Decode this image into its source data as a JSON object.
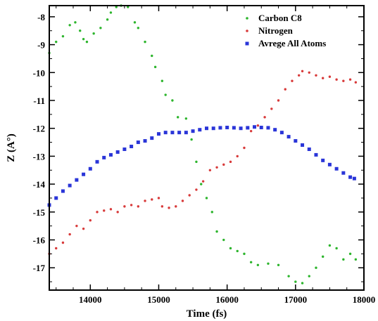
{
  "chart_data": {
    "type": "scatter",
    "title": "",
    "xlabel": "Time (fs)",
    "ylabel": "Z (A°)",
    "xlim": [
      13400,
      18000
    ],
    "ylim": [
      -17.8,
      -7.6
    ],
    "xticks": [
      14000,
      15000,
      16000,
      17000,
      18000
    ],
    "yticks": [
      -8,
      -9,
      -10,
      -11,
      -12,
      -13,
      -14,
      -15,
      -16,
      -17
    ],
    "legend_position": "top-right",
    "series": [
      {
        "name": "Carbon C8",
        "color": "#2db52d",
        "marker": "dot",
        "points": [
          [
            13400,
            -9.3
          ],
          [
            13500,
            -8.9
          ],
          [
            13600,
            -8.7
          ],
          [
            13700,
            -8.3
          ],
          [
            13780,
            -8.2
          ],
          [
            13850,
            -8.5
          ],
          [
            13900,
            -8.8
          ],
          [
            13950,
            -8.9
          ],
          [
            14050,
            -8.6
          ],
          [
            14150,
            -8.4
          ],
          [
            14250,
            -8.1
          ],
          [
            14300,
            -7.85
          ],
          [
            14380,
            -7.65
          ],
          [
            14450,
            -7.6
          ],
          [
            14550,
            -7.65
          ],
          [
            14650,
            -8.2
          ],
          [
            14700,
            -8.4
          ],
          [
            14800,
            -8.9
          ],
          [
            14900,
            -9.4
          ],
          [
            14950,
            -9.8
          ],
          [
            15050,
            -10.3
          ],
          [
            15100,
            -10.8
          ],
          [
            15200,
            -11.0
          ],
          [
            15280,
            -11.6
          ],
          [
            15400,
            -11.65
          ],
          [
            15480,
            -12.4
          ],
          [
            15550,
            -13.2
          ],
          [
            15620,
            -14.0
          ],
          [
            15700,
            -14.5
          ],
          [
            15780,
            -15.0
          ],
          [
            15850,
            -15.7
          ],
          [
            15950,
            -16.0
          ],
          [
            16050,
            -16.3
          ],
          [
            16150,
            -16.4
          ],
          [
            16250,
            -16.5
          ],
          [
            16350,
            -16.8
          ],
          [
            16450,
            -16.9
          ],
          [
            16600,
            -16.85
          ],
          [
            16750,
            -16.9
          ],
          [
            16900,
            -17.3
          ],
          [
            17000,
            -17.5
          ],
          [
            17100,
            -17.55
          ],
          [
            17200,
            -17.3
          ],
          [
            17300,
            -17.0
          ],
          [
            17400,
            -16.6
          ],
          [
            17500,
            -16.2
          ],
          [
            17600,
            -16.3
          ],
          [
            17700,
            -16.7
          ],
          [
            17800,
            -16.5
          ],
          [
            17880,
            -16.7
          ]
        ]
      },
      {
        "name": "Nitrogen",
        "color": "#d83a3a",
        "marker": "dot",
        "points": [
          [
            13400,
            -16.5
          ],
          [
            13500,
            -16.3
          ],
          [
            13600,
            -16.1
          ],
          [
            13700,
            -15.8
          ],
          [
            13800,
            -15.5
          ],
          [
            13900,
            -15.6
          ],
          [
            14000,
            -15.3
          ],
          [
            14100,
            -15.0
          ],
          [
            14200,
            -14.95
          ],
          [
            14300,
            -14.9
          ],
          [
            14400,
            -15.0
          ],
          [
            14500,
            -14.8
          ],
          [
            14600,
            -14.75
          ],
          [
            14700,
            -14.8
          ],
          [
            14800,
            -14.6
          ],
          [
            14900,
            -14.55
          ],
          [
            15000,
            -14.5
          ],
          [
            15050,
            -14.8
          ],
          [
            15150,
            -14.85
          ],
          [
            15250,
            -14.8
          ],
          [
            15350,
            -14.6
          ],
          [
            15450,
            -14.4
          ],
          [
            15550,
            -14.2
          ],
          [
            15650,
            -13.9
          ],
          [
            15750,
            -13.5
          ],
          [
            15850,
            -13.4
          ],
          [
            15950,
            -13.3
          ],
          [
            16050,
            -13.2
          ],
          [
            16150,
            -13.0
          ],
          [
            16250,
            -12.7
          ],
          [
            16350,
            -12.1
          ],
          [
            16450,
            -11.9
          ],
          [
            16550,
            -11.6
          ],
          [
            16650,
            -11.3
          ],
          [
            16750,
            -11.0
          ],
          [
            16850,
            -10.6
          ],
          [
            16950,
            -10.3
          ],
          [
            17050,
            -10.1
          ],
          [
            17100,
            -9.95
          ],
          [
            17200,
            -10.0
          ],
          [
            17300,
            -10.1
          ],
          [
            17400,
            -10.2
          ],
          [
            17500,
            -10.15
          ],
          [
            17600,
            -10.25
          ],
          [
            17700,
            -10.3
          ],
          [
            17800,
            -10.25
          ],
          [
            17880,
            -10.35
          ]
        ]
      },
      {
        "name": "Avrege All Atoms",
        "color": "#2a35d8",
        "marker": "square",
        "points": [
          [
            13400,
            -14.75
          ],
          [
            13500,
            -14.5
          ],
          [
            13600,
            -14.25
          ],
          [
            13700,
            -14.05
          ],
          [
            13800,
            -13.85
          ],
          [
            13900,
            -13.65
          ],
          [
            14000,
            -13.45
          ],
          [
            14100,
            -13.2
          ],
          [
            14200,
            -13.05
          ],
          [
            14300,
            -12.95
          ],
          [
            14400,
            -12.85
          ],
          [
            14500,
            -12.75
          ],
          [
            14600,
            -12.65
          ],
          [
            14700,
            -12.5
          ],
          [
            14800,
            -12.45
          ],
          [
            14900,
            -12.35
          ],
          [
            15000,
            -12.2
          ],
          [
            15100,
            -12.15
          ],
          [
            15200,
            -12.15
          ],
          [
            15300,
            -12.15
          ],
          [
            15400,
            -12.15
          ],
          [
            15500,
            -12.1
          ],
          [
            15600,
            -12.05
          ],
          [
            15700,
            -12.0
          ],
          [
            15800,
            -12.0
          ],
          [
            15900,
            -11.98
          ],
          [
            16000,
            -11.97
          ],
          [
            16100,
            -11.98
          ],
          [
            16200,
            -12.0
          ],
          [
            16300,
            -11.98
          ],
          [
            16400,
            -11.95
          ],
          [
            16500,
            -11.97
          ],
          [
            16600,
            -11.98
          ],
          [
            16700,
            -12.05
          ],
          [
            16800,
            -12.15
          ],
          [
            16900,
            -12.3
          ],
          [
            17000,
            -12.45
          ],
          [
            17100,
            -12.6
          ],
          [
            17200,
            -12.75
          ],
          [
            17300,
            -12.95
          ],
          [
            17400,
            -13.15
          ],
          [
            17500,
            -13.3
          ],
          [
            17600,
            -13.45
          ],
          [
            17700,
            -13.6
          ],
          [
            17800,
            -13.75
          ],
          [
            17860,
            -13.8
          ]
        ]
      }
    ]
  }
}
